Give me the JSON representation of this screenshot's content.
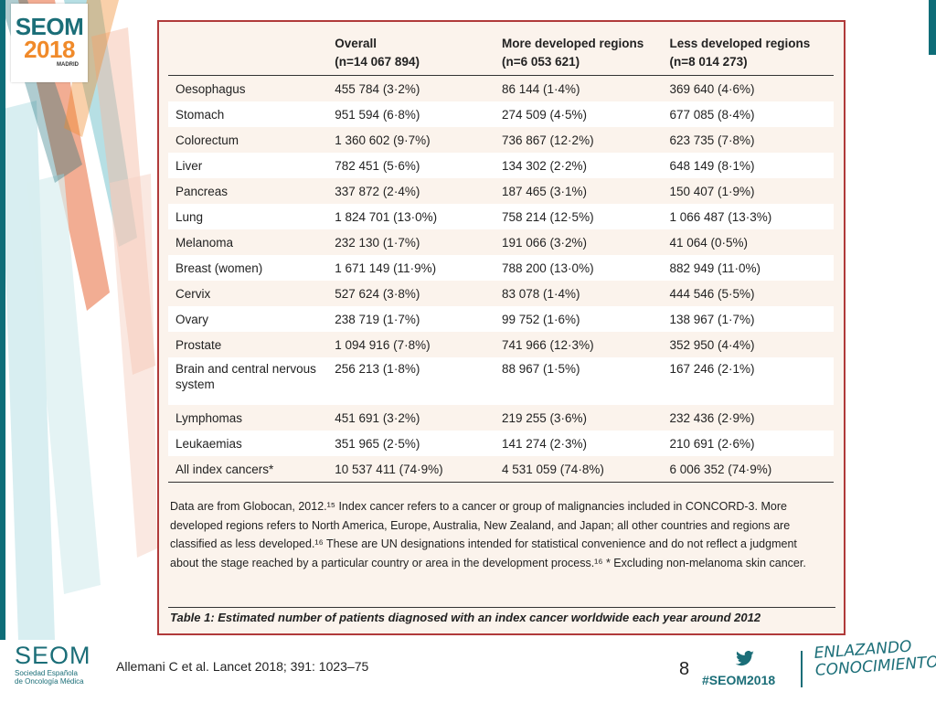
{
  "logo": {
    "line1": "SEOM",
    "line2": "2018",
    "city": "MADRID"
  },
  "table": {
    "headers": [
      {
        "title": "",
        "n": ""
      },
      {
        "title": "Overall",
        "n": "(n=14 067 894)"
      },
      {
        "title": "More developed regions",
        "n": "(n=6 053 621)"
      },
      {
        "title": "Less developed regions",
        "n": "(n=8 014 273)"
      }
    ],
    "rows": [
      {
        "site": "Oesophagus",
        "overall": "455 784 (3·2%)",
        "more": "86 144 (1·4%)",
        "less": "369 640 (4·6%)"
      },
      {
        "site": "Stomach",
        "overall": "951 594 (6·8%)",
        "more": "274 509 (4·5%)",
        "less": "677 085 (8·4%)"
      },
      {
        "site": "Colorectum",
        "overall": "1 360 602 (9·7%)",
        "more": "736 867 (12·2%)",
        "less": "623 735 (7·8%)"
      },
      {
        "site": "Liver",
        "overall": "782 451 (5·6%)",
        "more": "134 302 (2·2%)",
        "less": "648 149 (8·1%)"
      },
      {
        "site": "Pancreas",
        "overall": "337 872 (2·4%)",
        "more": "187 465 (3·1%)",
        "less": "150 407 (1·9%)"
      },
      {
        "site": "Lung",
        "overall": "1 824 701 (13·0%)",
        "more": "758 214 (12·5%)",
        "less": "1 066 487 (13·3%)"
      },
      {
        "site": "Melanoma",
        "overall": "232 130 (1·7%)",
        "more": "191 066 (3·2%)",
        "less": "41 064 (0·5%)"
      },
      {
        "site": "Breast (women)",
        "overall": "1 671 149 (11·9%)",
        "more": "788 200 (13·0%)",
        "less": "882 949 (11·0%)"
      },
      {
        "site": "Cervix",
        "overall": "527 624 (3·8%)",
        "more": "83 078 (1·4%)",
        "less": "444 546 (5·5%)"
      },
      {
        "site": "Ovary",
        "overall": "238 719 (1·7%)",
        "more": "99 752 (1·6%)",
        "less": "138 967 (1·7%)"
      },
      {
        "site": "Prostate",
        "overall": "1 094 916 (7·8%)",
        "more": "741 966 (12·3%)",
        "less": "352 950 (4·4%)"
      },
      {
        "site": "Brain and central nervous system",
        "overall": "256 213 (1·8%)",
        "more": "88 967 (1·5%)",
        "less": "167 246 (2·1%)"
      },
      {
        "site": "Lymphomas",
        "overall": "451 691 (3·2%)",
        "more": "219 255 (3·6%)",
        "less": "232 436 (2·9%)"
      },
      {
        "site": "Leukaemias",
        "overall": "351 965 (2·5%)",
        "more": "141 274 (2·3%)",
        "less": "210 691 (2·6%)"
      },
      {
        "site": "All index cancers*",
        "overall": "10 537 411 (74·9%)",
        "more": "4 531 059 (74·8%)",
        "less": "6 006 352 (74·9%)"
      }
    ],
    "notes": "Data are from Globocan, 2012.¹⁵ Index cancer refers to a cancer or group of malignancies included in CONCORD-3. More developed regions refers to North America, Europe, Australia, New Zealand, and Japan; all other countries and regions are classified as less developed.¹⁶ These are UN designations intended for statistical convenience and do not reflect a judgment about the stage reached by a particular country or area in the development process.¹⁶ * Excluding non-melanoma skin cancer.",
    "caption": "Table 1: Estimated number of patients diagnosed with an index cancer worldwide each year around 2012"
  },
  "footer": {
    "brand": "SEOM",
    "brand_sub1": "Sociedad Española",
    "brand_sub2": "de Oncología Médica",
    "citation": "Allemani C et al. Lancet 2018; 391: 1023–75",
    "page_number": "8",
    "hashtag": "#SEOM2018",
    "slogan_line1": "ENLAZANDO",
    "slogan_line2": "CONOCIMIENTO",
    "twitter_icon": "twitter-bird-icon"
  },
  "colors": {
    "teal": "#1b6e78",
    "orange": "#f08a2a",
    "frame_border": "#b03a3a",
    "paper": "#fbf3ec"
  }
}
